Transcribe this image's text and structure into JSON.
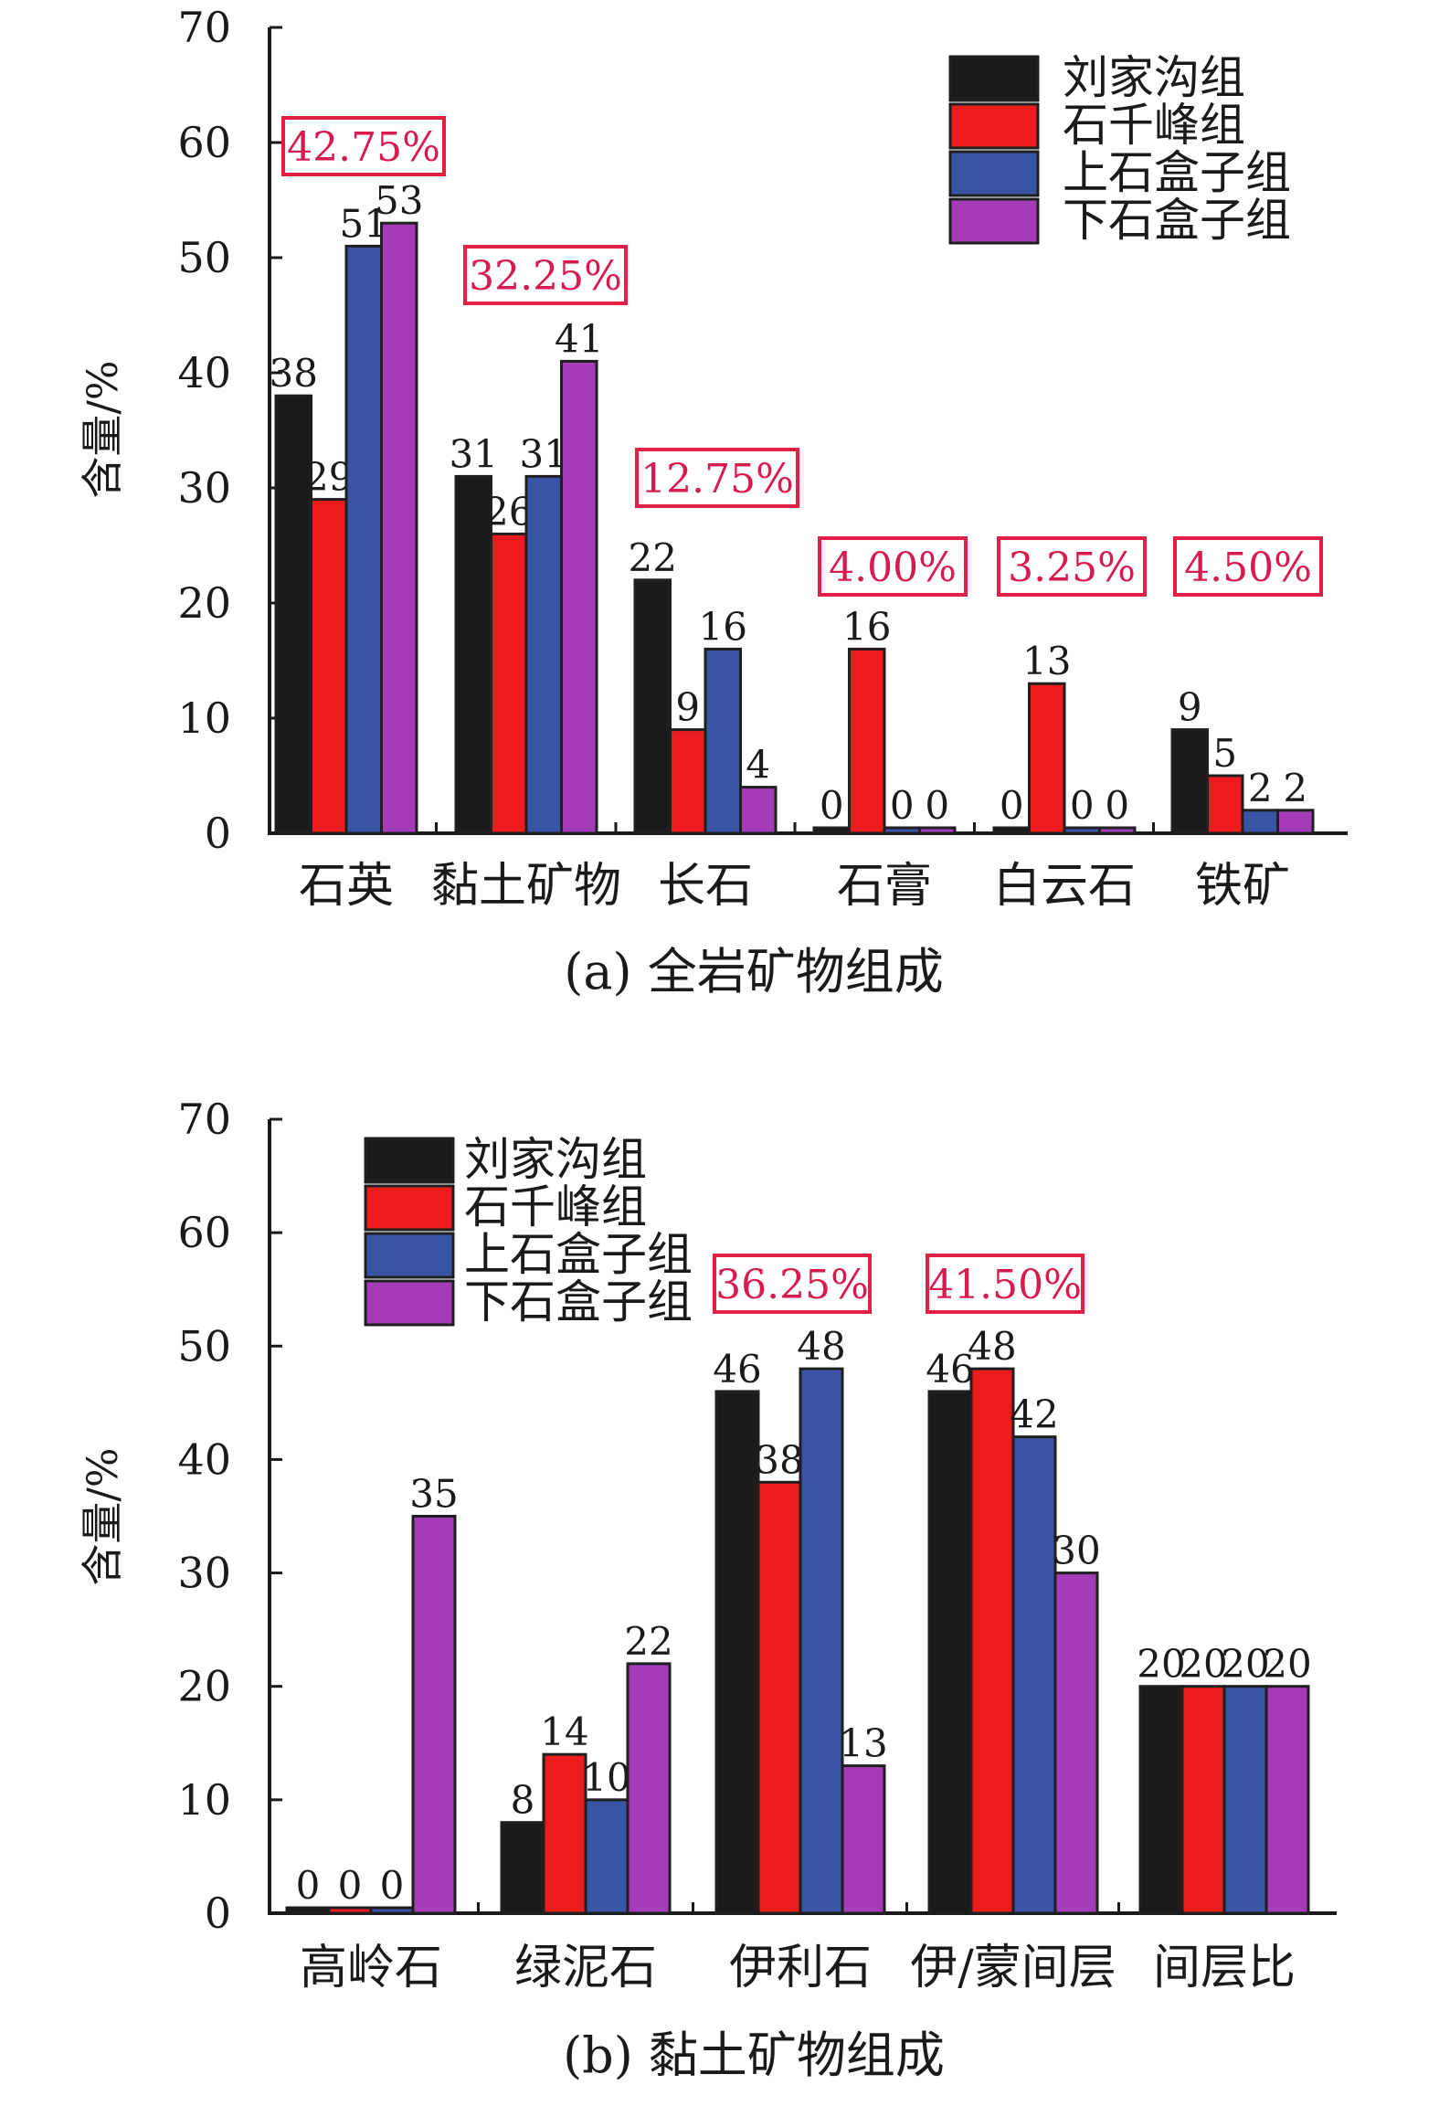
{
  "colors": {
    "series": [
      "#1c1a1d",
      "#ec1b1e",
      "#3953a5",
      "#a43cba"
    ],
    "annotation_border": "#e21f45",
    "annotation_text": "#d81b4e",
    "axis": "#1a1a1a"
  },
  "chart_data": [
    {
      "id": "chart-a",
      "type": "bar",
      "title": "(a) 全岩矿物组成",
      "xlabel": "",
      "ylabel": "含量/%",
      "ylim": [
        0,
        70
      ],
      "yticks": [
        0,
        10,
        20,
        30,
        40,
        50,
        60,
        70
      ],
      "grid": false,
      "legend_position": "top-right",
      "categories": [
        "石英",
        "黏土矿物",
        "长石",
        "石膏",
        "白云石",
        "铁矿"
      ],
      "series": [
        {
          "name": "刘家沟组",
          "values": [
            38,
            31,
            22,
            0,
            0,
            9
          ]
        },
        {
          "name": "石千峰组",
          "values": [
            29,
            26,
            9,
            16,
            13,
            5
          ]
        },
        {
          "name": "上石盒子组",
          "values": [
            51,
            31,
            16,
            0,
            0,
            2
          ]
        },
        {
          "name": "下石盒子组",
          "values": [
            53,
            41,
            4,
            0,
            0,
            2
          ]
        }
      ],
      "annotations": [
        "42.75%",
        "32.25%",
        "12.75%",
        "4.00%",
        "3.25%",
        "4.50%"
      ]
    },
    {
      "id": "chart-b",
      "type": "bar",
      "title": "(b) 黏土矿物组成",
      "xlabel": "",
      "ylabel": "含量/%",
      "ylim": [
        0,
        70
      ],
      "yticks": [
        0,
        10,
        20,
        30,
        40,
        50,
        60,
        70
      ],
      "grid": false,
      "legend_position": "top-left",
      "categories": [
        "高岭石",
        "绿泥石",
        "伊利石",
        "伊/蒙间层",
        "间层比"
      ],
      "series": [
        {
          "name": "刘家沟组",
          "values": [
            0,
            8,
            46,
            46,
            20
          ]
        },
        {
          "name": "石千峰组",
          "values": [
            0,
            14,
            38,
            48,
            20
          ]
        },
        {
          "name": "上石盒子组",
          "values": [
            0,
            10,
            48,
            42,
            20
          ]
        },
        {
          "name": "下石盒子组",
          "values": [
            35,
            22,
            13,
            30,
            20
          ]
        }
      ],
      "annotations": [
        "",
        "",
        "36.25%",
        "41.50%",
        ""
      ]
    }
  ]
}
